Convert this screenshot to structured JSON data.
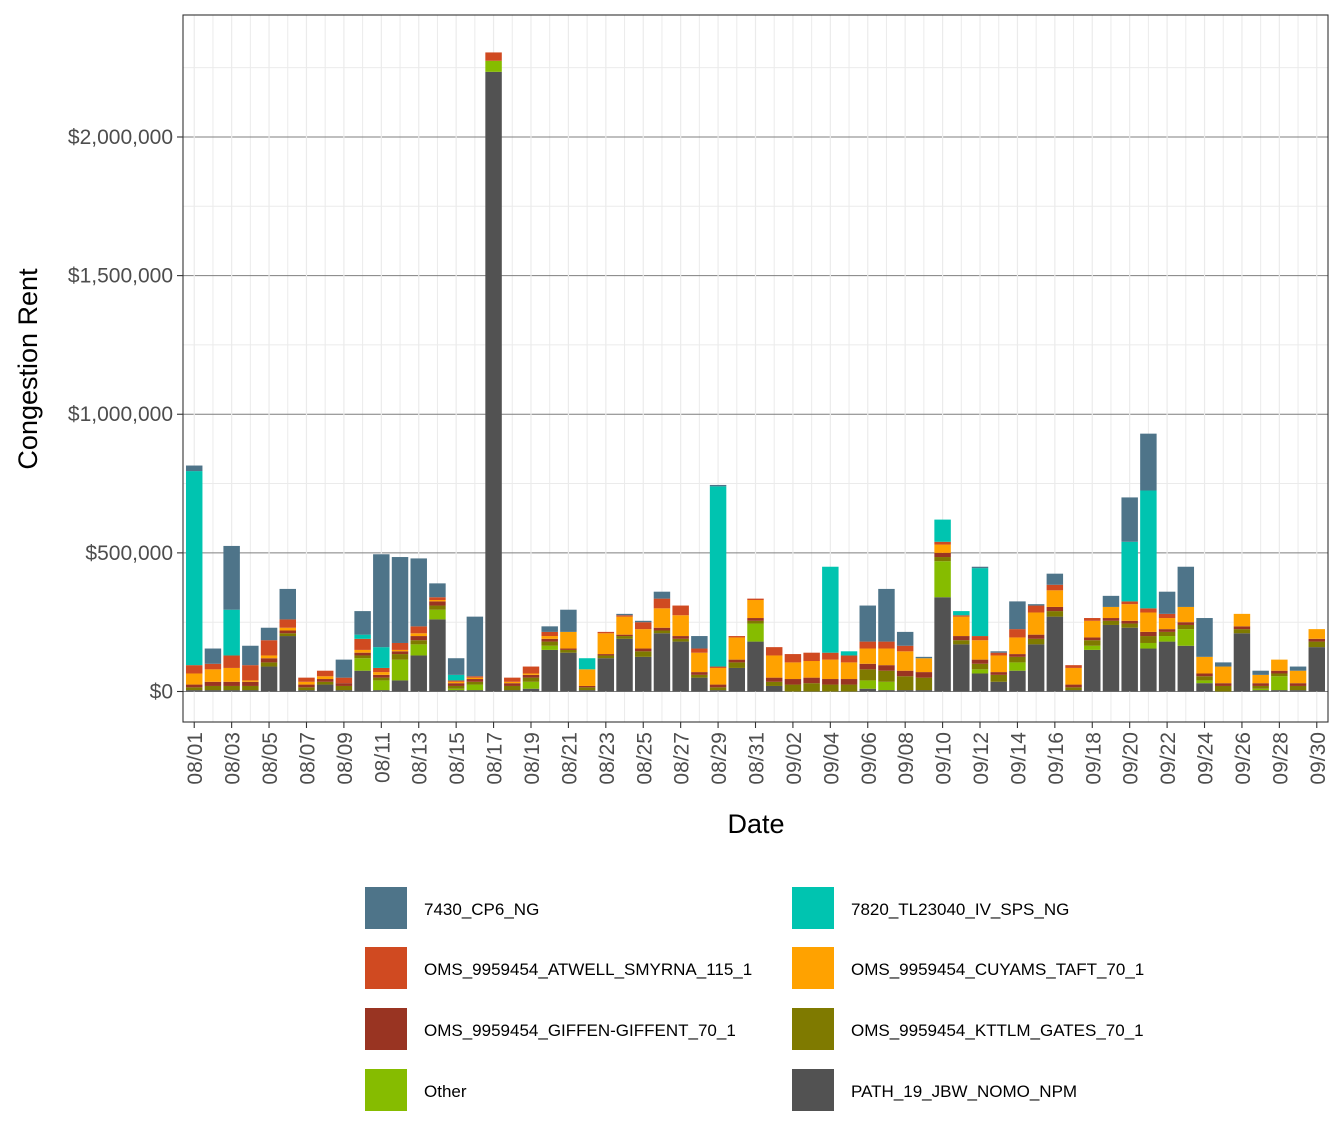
{
  "chart_data": {
    "type": "bar",
    "stacked": true,
    "title": "",
    "xlabel": "Date",
    "ylabel": "Congestion Rent",
    "ylim": [
      -110000,
      2440000
    ],
    "yticks": [
      0,
      500000,
      1000000,
      1500000,
      2000000
    ],
    "ytick_labels": [
      "$0",
      "$500,000",
      "$1,000,000",
      "$1,500,000",
      "$2,000,000"
    ],
    "xtick_labels": [
      "08/01",
      "08/03",
      "08/05",
      "08/07",
      "08/09",
      "08/11",
      "08/13",
      "08/15",
      "08/17",
      "08/19",
      "08/21",
      "08/23",
      "08/25",
      "08/27",
      "08/29",
      "08/31",
      "09/02",
      "09/04",
      "09/06",
      "09/08",
      "09/10",
      "09/12",
      "09/14",
      "09/16",
      "09/18",
      "09/20",
      "09/22",
      "09/24",
      "09/26",
      "09/28",
      "09/30"
    ],
    "legend_position": "bottom",
    "categories": [
      "08/01",
      "08/02",
      "08/03",
      "08/04",
      "08/05",
      "08/06",
      "08/07",
      "08/08",
      "08/09",
      "08/10",
      "08/11",
      "08/12",
      "08/13",
      "08/14",
      "08/15",
      "08/16",
      "08/17",
      "08/18",
      "08/19",
      "08/20",
      "08/21",
      "08/22",
      "08/23",
      "08/24",
      "08/25",
      "08/26",
      "08/27",
      "08/28",
      "08/29",
      "08/30",
      "08/31",
      "09/01",
      "09/02",
      "09/03",
      "09/04",
      "09/05",
      "09/06",
      "09/07",
      "09/08",
      "09/09",
      "09/10",
      "09/11",
      "09/12",
      "09/13",
      "09/14",
      "09/15",
      "09/16",
      "09/17",
      "09/18",
      "09/19",
      "09/20",
      "09/21",
      "09/22",
      "09/23",
      "09/24",
      "09/25",
      "09/26",
      "09/27",
      "09/28",
      "09/29",
      "09/30"
    ],
    "series": [
      {
        "name": "PATH_19_JBW_NOMO_NPM",
        "color": "#525252",
        "values": [
          5000,
          5000,
          5000,
          5000,
          90000,
          200000,
          5000,
          25000,
          5000,
          75000,
          5000,
          40000,
          130000,
          260000,
          5000,
          5000,
          2235000,
          5000,
          10000,
          150000,
          140000,
          5000,
          120000,
          190000,
          125000,
          210000,
          180000,
          50000,
          5000,
          85000,
          180000,
          20000,
          0,
          0,
          0,
          0,
          10000,
          5000,
          5000,
          5000,
          340000,
          170000,
          65000,
          35000,
          75000,
          170000,
          270000,
          5000,
          150000,
          240000,
          230000,
          155000,
          180000,
          165000,
          30000,
          0,
          210000,
          5000,
          5000,
          5000,
          160000
        ]
      },
      {
        "name": "Other",
        "color": "#86BC00",
        "values": [
          0,
          0,
          0,
          0,
          0,
          0,
          0,
          0,
          0,
          45000,
          35000,
          75000,
          40000,
          35000,
          5000,
          20000,
          40000,
          0,
          25000,
          15000,
          0,
          0,
          0,
          0,
          0,
          0,
          0,
          0,
          0,
          0,
          65000,
          0,
          0,
          0,
          0,
          0,
          30000,
          30000,
          0,
          0,
          130000,
          0,
          15000,
          0,
          30000,
          0,
          0,
          0,
          15000,
          0,
          0,
          20000,
          20000,
          60000,
          10000,
          0,
          0,
          5000,
          50000,
          0,
          0
        ]
      },
      {
        "name": "OMS_9959454_KTTLM_GATES_70_1",
        "color": "#7F7A00",
        "values": [
          10000,
          15000,
          15000,
          15000,
          15000,
          10000,
          10000,
          10000,
          15000,
          10000,
          10000,
          20000,
          15000,
          15000,
          10000,
          10000,
          0,
          15000,
          15000,
          15000,
          10000,
          10000,
          10000,
          10000,
          20000,
          10000,
          10000,
          10000,
          10000,
          20000,
          10000,
          15000,
          25000,
          30000,
          25000,
          25000,
          40000,
          40000,
          50000,
          45000,
          15000,
          15000,
          20000,
          25000,
          20000,
          20000,
          20000,
          10000,
          20000,
          15000,
          15000,
          25000,
          15000,
          15000,
          15000,
          20000,
          15000,
          10000,
          10000,
          15000,
          20000
        ]
      },
      {
        "name": "OMS_9959454_GIFFEN-GIFFENT_70_1",
        "color": "#993422",
        "values": [
          10000,
          15000,
          15000,
          15000,
          15000,
          10000,
          10000,
          10000,
          10000,
          10000,
          10000,
          10000,
          15000,
          15000,
          10000,
          10000,
          0,
          10000,
          10000,
          10000,
          5000,
          5000,
          5000,
          5000,
          10000,
          10000,
          10000,
          10000,
          10000,
          10000,
          10000,
          15000,
          20000,
          20000,
          20000,
          20000,
          20000,
          20000,
          20000,
          20000,
          15000,
          15000,
          15000,
          10000,
          10000,
          15000,
          15000,
          10000,
          10000,
          10000,
          10000,
          15000,
          10000,
          10000,
          10000,
          10000,
          10000,
          10000,
          10000,
          10000,
          10000
        ]
      },
      {
        "name": "OMS_9959454_CUYAMS_TAFT_70_1",
        "color": "#FFA200",
        "values": [
          40000,
          45000,
          50000,
          5000,
          10000,
          10000,
          10000,
          10000,
          0,
          10000,
          10000,
          5000,
          10000,
          5000,
          5000,
          5000,
          0,
          5000,
          5000,
          10000,
          60000,
          60000,
          75000,
          65000,
          70000,
          70000,
          75000,
          70000,
          60000,
          80000,
          65000,
          80000,
          60000,
          60000,
          70000,
          60000,
          55000,
          60000,
          70000,
          50000,
          30000,
          70000,
          70000,
          60000,
          60000,
          80000,
          60000,
          60000,
          60000,
          40000,
          60000,
          70000,
          40000,
          55000,
          60000,
          60000,
          45000,
          30000,
          40000,
          45000,
          35000
        ]
      },
      {
        "name": "OMS_9959454_ATWELL_SMYRNA_115_1",
        "color": "#D04A21",
        "values": [
          30000,
          20000,
          45000,
          55000,
          55000,
          30000,
          15000,
          20000,
          20000,
          40000,
          15000,
          25000,
          25000,
          10000,
          5000,
          5000,
          30000,
          15000,
          25000,
          15000,
          0,
          0,
          5000,
          5000,
          25000,
          35000,
          35000,
          15000,
          5000,
          5000,
          5000,
          30000,
          30000,
          30000,
          25000,
          25000,
          25000,
          25000,
          20000,
          0,
          10000,
          5000,
          15000,
          10000,
          30000,
          25000,
          20000,
          10000,
          10000,
          0,
          10000,
          15000,
          15000,
          0,
          0,
          0,
          0,
          0,
          0,
          0,
          0
        ]
      },
      {
        "name": "7820_TL23040_IV_SPS_NG",
        "color": "#00C4B0",
        "values": [
          700000,
          0,
          165000,
          0,
          0,
          0,
          0,
          0,
          0,
          15000,
          75000,
          0,
          0,
          0,
          20000,
          0,
          0,
          0,
          0,
          0,
          0,
          40000,
          0,
          0,
          0,
          0,
          0,
          0,
          650000,
          0,
          0,
          0,
          0,
          0,
          310000,
          15000,
          0,
          0,
          0,
          0,
          80000,
          15000,
          245000,
          0,
          0,
          0,
          0,
          0,
          0,
          0,
          215000,
          425000,
          0,
          0,
          0,
          0,
          0,
          0,
          0,
          0,
          0
        ]
      },
      {
        "name": "7430_CP6_NG",
        "color": "#4E7489",
        "values": [
          20000,
          55000,
          230000,
          70000,
          45000,
          110000,
          0,
          0,
          65000,
          85000,
          335000,
          310000,
          245000,
          50000,
          60000,
          215000,
          0,
          0,
          0,
          20000,
          80000,
          0,
          0,
          5000,
          5000,
          25000,
          0,
          45000,
          5000,
          0,
          0,
          0,
          0,
          0,
          0,
          0,
          130000,
          190000,
          50000,
          5000,
          0,
          0,
          5000,
          5000,
          100000,
          5000,
          40000,
          0,
          0,
          40000,
          160000,
          205000,
          80000,
          145000,
          140000,
          15000,
          0,
          15000,
          0,
          15000,
          0
        ]
      }
    ]
  }
}
